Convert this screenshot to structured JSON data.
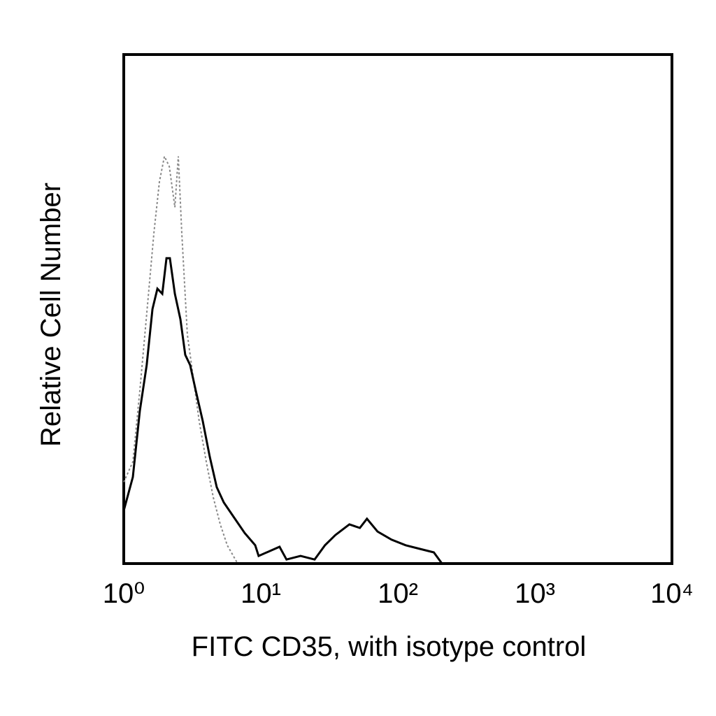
{
  "chart_data": {
    "type": "line",
    "xlabel": "FITC CD35, with isotype control",
    "ylabel": "Relative Cell Number",
    "xscale": "log",
    "xlim": [
      1,
      10000
    ],
    "xticks": [
      {
        "value": 1,
        "label": "10⁰"
      },
      {
        "value": 10,
        "label": "10¹"
      },
      {
        "value": 100,
        "label": "10²"
      },
      {
        "value": 1000,
        "label": "10³"
      },
      {
        "value": 10000,
        "label": "10⁴"
      }
    ],
    "ylim": [
      0,
      100
    ],
    "series": [
      {
        "color": "#888888",
        "linestyle": "dotted",
        "x": [
          1,
          1.165,
          1.31,
          1.47,
          1.66,
          1.82,
          1.98,
          2.15,
          2.36,
          2.5,
          2.65,
          2.91,
          3.16,
          3.55,
          4.0,
          4.5,
          5.06,
          5.69,
          6.78
        ],
        "values": [
          16,
          20,
          34,
          49,
          65,
          75,
          80,
          78,
          70,
          80,
          65,
          45,
          38,
          28,
          20,
          13,
          7.7,
          3.6,
          0
        ]
      },
      {
        "color": "#000000",
        "linestyle": "solid",
        "x": [
          1,
          1.165,
          1.31,
          1.47,
          1.62,
          1.76,
          1.91,
          2.05,
          2.17,
          2.36,
          2.59,
          2.81,
          3.05,
          3.35,
          3.77,
          4.24,
          4.77,
          5.37,
          6.4,
          7.63,
          9.1,
          9.64,
          13.7,
          15.4,
          19.5,
          24.7,
          29.4,
          35.0,
          44.3,
          52.8,
          59.5,
          71.0,
          89.9,
          114,
          144,
          183,
          210
        ],
        "values": [
          10.4,
          17,
          30,
          39,
          50,
          54,
          53,
          60,
          60,
          53,
          48,
          41,
          39,
          34,
          28,
          21,
          15,
          12,
          9,
          6,
          3.6,
          1.5,
          3.3,
          0.8,
          1.5,
          0.8,
          3.6,
          5.6,
          7.7,
          7,
          8.8,
          6.3,
          4.7,
          3.6,
          2.9,
          2.2,
          0
        ]
      }
    ]
  }
}
